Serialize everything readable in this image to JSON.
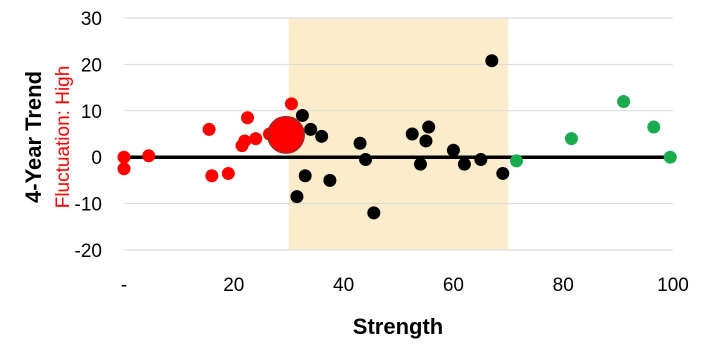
{
  "chart_data": {
    "type": "scatter",
    "xlabel": "Strength",
    "ylabel": "4-Year Trend",
    "ylabel_secondary": "Fluctuation: High",
    "xlim": [
      0,
      100
    ],
    "ylim": [
      -20,
      30
    ],
    "x_ticks": [
      0,
      20,
      40,
      60,
      80,
      100
    ],
    "x_tick_labels": [
      "-",
      "20",
      "40",
      "60",
      "80",
      "100"
    ],
    "y_ticks": [
      -20,
      -10,
      0,
      10,
      20,
      30
    ],
    "y_tick_labels": [
      "-20",
      "-10",
      "0",
      "10",
      "20",
      "30"
    ],
    "grid": "horizontal",
    "highlight_band": {
      "x_from": 30,
      "x_to": 70,
      "color": "#fbeccb"
    },
    "zero_line": true,
    "colors": {
      "red": "#ff0000",
      "black": "#000000",
      "green": "#1aab4f",
      "band": "#fbeccb",
      "big_marker": "#ff0000",
      "big_marker_edge": "#b22222"
    },
    "series": [
      {
        "color": "red",
        "points": [
          {
            "x": 0,
            "y": 0
          },
          {
            "x": 0,
            "y": -2.5
          },
          {
            "x": 4.5,
            "y": 0.3
          },
          {
            "x": 15.5,
            "y": 6
          },
          {
            "x": 16,
            "y": -4
          },
          {
            "x": 19,
            "y": -3.5
          },
          {
            "x": 21.5,
            "y": 2.5
          },
          {
            "x": 22,
            "y": 3.5
          },
          {
            "x": 22.5,
            "y": 8.5
          },
          {
            "x": 24,
            "y": 4
          },
          {
            "x": 26.5,
            "y": 5
          },
          {
            "x": 28.5,
            "y": 5.5
          },
          {
            "x": 30.5,
            "y": 11.5
          }
        ]
      },
      {
        "color": "black",
        "points": [
          {
            "x": 31.5,
            "y": -8.5
          },
          {
            "x": 32.5,
            "y": 9
          },
          {
            "x": 33,
            "y": -4
          },
          {
            "x": 34,
            "y": 6
          },
          {
            "x": 36,
            "y": 4.5
          },
          {
            "x": 37.5,
            "y": -5
          },
          {
            "x": 43,
            "y": 3
          },
          {
            "x": 44,
            "y": -0.5
          },
          {
            "x": 45.5,
            "y": -12
          },
          {
            "x": 52.5,
            "y": 5
          },
          {
            "x": 54,
            "y": -1.5
          },
          {
            "x": 55,
            "y": 3.5
          },
          {
            "x": 55.5,
            "y": 6.5
          },
          {
            "x": 60,
            "y": 1.5
          },
          {
            "x": 62,
            "y": -1.5
          },
          {
            "x": 65,
            "y": -0.5
          },
          {
            "x": 67,
            "y": 20.8
          },
          {
            "x": 69,
            "y": -3.5
          }
        ]
      },
      {
        "color": "green",
        "points": [
          {
            "x": 71.5,
            "y": -0.8
          },
          {
            "x": 81.5,
            "y": 4
          },
          {
            "x": 91,
            "y": 12
          },
          {
            "x": 96.5,
            "y": 6.5
          },
          {
            "x": 99.5,
            "y": 0
          }
        ]
      }
    ],
    "highlight_point": {
      "x": 29.5,
      "y": 4.8,
      "color": "big_marker"
    }
  }
}
